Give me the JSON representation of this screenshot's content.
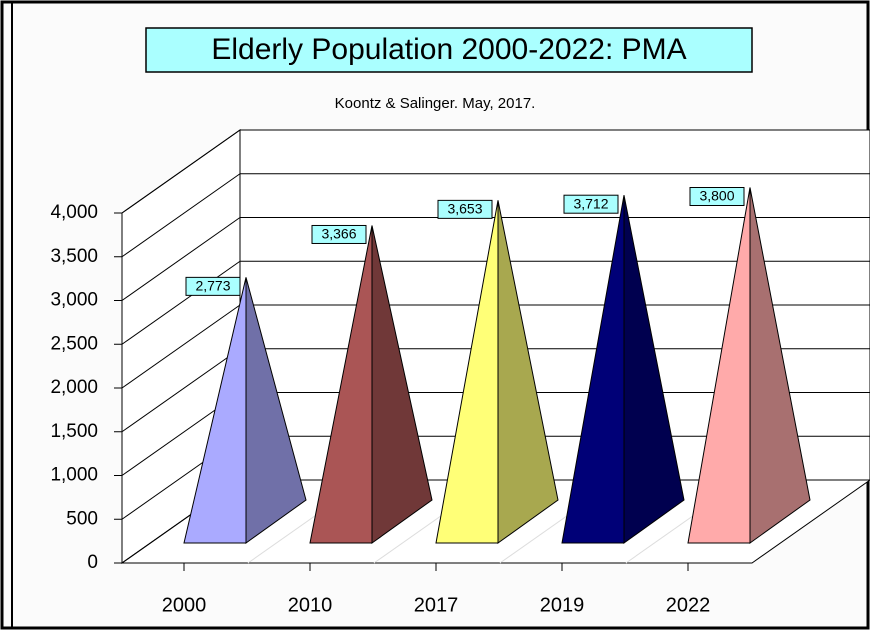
{
  "chart_data": {
    "type": "pyramid3d",
    "title": "Elderly Population 2000-2022: PMA",
    "subtitle": "Koontz & Salinger.  May, 2017.",
    "categories": [
      "2000",
      "2010",
      "2017",
      "2019",
      "2022"
    ],
    "values": [
      2773,
      3366,
      3653,
      3712,
      3800
    ],
    "value_labels": [
      "2,773",
      "3,366",
      "3,653",
      "3,712",
      "3,800"
    ],
    "colors": [
      "#aaaaff",
      "#aa5555",
      "#ffff77",
      "#000077",
      "#ffaaaa"
    ],
    "ylim": [
      0,
      4000
    ],
    "yticks": [
      0,
      500,
      {
        "value": 1000,
        "label": "1,000"
      },
      {
        "value": 1500,
        "label": "1,500"
      },
      {
        "value": 2000,
        "label": "2,000"
      },
      {
        "value": 2500,
        "label": "2,500"
      },
      {
        "value": 3000,
        "label": "3,000"
      },
      {
        "value": 3500,
        "label": "3,500"
      },
      {
        "value": 4000,
        "label": "4,000"
      }
    ],
    "grid": true
  }
}
